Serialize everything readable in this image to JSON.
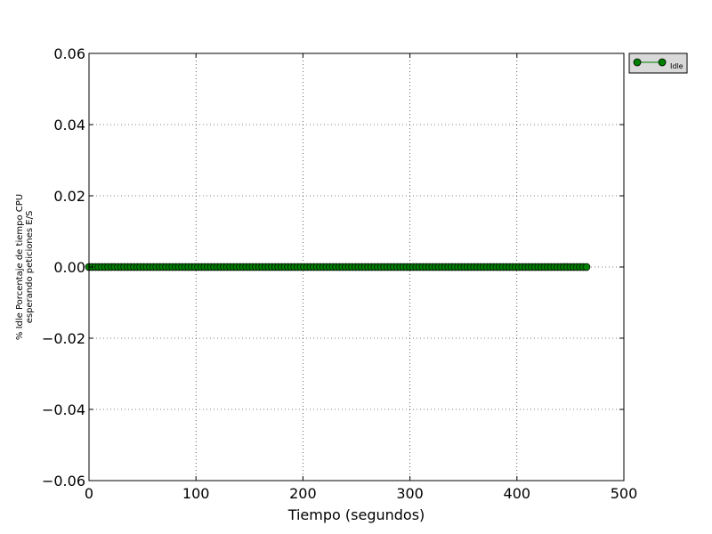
{
  "chart_data": {
    "type": "line",
    "title": "",
    "xlabel": "Tiempo (segundos)",
    "ylabel_lines": [
      "% Idle Porcentaje de tiempo CPU",
      "esperando peticiones E/S"
    ],
    "xlim": [
      0,
      500
    ],
    "ylim": [
      -0.06,
      0.06
    ],
    "xticks": [
      0,
      100,
      200,
      300,
      400,
      500
    ],
    "xtick_labels": [
      "0",
      "100",
      "200",
      "300",
      "400",
      "500"
    ],
    "yticks": [
      0.06,
      0.04,
      0.02,
      0.0,
      -0.02,
      -0.04,
      -0.06
    ],
    "ytick_labels": [
      "0.06",
      "0.04",
      "0.02",
      "0.00",
      "−0.02",
      "−0.04",
      "−0.06"
    ],
    "grid": true,
    "legend_position": "outside-top-right",
    "series": [
      {
        "name": "Idle",
        "color": "#008000",
        "marker": "circle",
        "x_start": 0,
        "x_end": 465,
        "x_step": 3,
        "y_constant": 0.0
      }
    ]
  }
}
